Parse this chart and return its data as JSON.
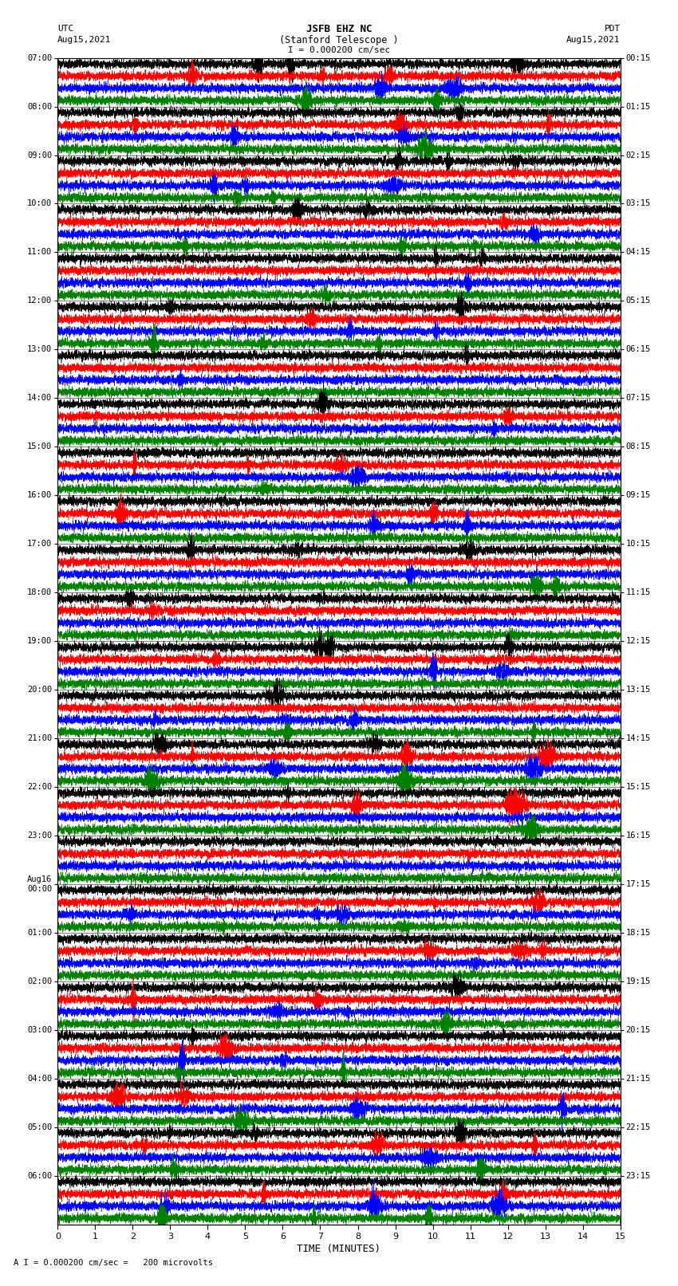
{
  "title_line1": "JSFB EHZ NC",
  "title_line2": "(Stanford Telescope )",
  "scale_label": "I = 0.000200 cm/sec",
  "left_label_top": "UTC",
  "left_label_date": "Aug15,2021",
  "right_label_top": "PDT",
  "right_label_date": "Aug15,2021",
  "xlabel": "TIME (MINUTES)",
  "footer": "A I = 0.000200 cm/sec =   200 microvolts",
  "utc_times": [
    "07:00",
    "08:00",
    "09:00",
    "10:00",
    "11:00",
    "12:00",
    "13:00",
    "14:00",
    "15:00",
    "16:00",
    "17:00",
    "18:00",
    "19:00",
    "20:00",
    "21:00",
    "22:00",
    "23:00",
    "Aug16\n00:00",
    "01:00",
    "02:00",
    "03:00",
    "04:00",
    "05:00",
    "06:00"
  ],
  "pdt_times": [
    "00:15",
    "01:15",
    "02:15",
    "03:15",
    "04:15",
    "05:15",
    "06:15",
    "07:15",
    "08:15",
    "09:15",
    "10:15",
    "11:15",
    "12:15",
    "13:15",
    "14:15",
    "15:15",
    "16:15",
    "17:15",
    "18:15",
    "19:15",
    "20:15",
    "21:15",
    "22:15",
    "23:15"
  ],
  "num_rows": 24,
  "traces_per_row": 4,
  "colors": [
    "black",
    "red",
    "blue",
    "green"
  ],
  "xmin": 0,
  "xmax": 15,
  "bg_color": "white",
  "noise_seed": 42
}
